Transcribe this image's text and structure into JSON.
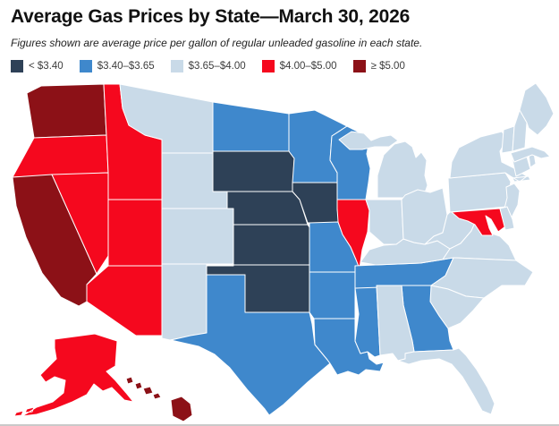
{
  "header": {
    "title": "Average Gas Prices by State—March 30, 2026",
    "subtitle": "Figures shown are average price per gallon of regular unleaded gasoline in each state."
  },
  "legend": {
    "items": [
      {
        "label": "< $3.40",
        "color": "#2e4157"
      },
      {
        "label": "$3.40–$3.65",
        "color": "#3f88cc"
      },
      {
        "label": "$3.65–$4.00",
        "color": "#c9dae8"
      },
      {
        "label": "$4.00–$5.00",
        "color": "#f5081e"
      },
      {
        "label": "≥ $5.00",
        "color": "#8c1117"
      }
    ]
  },
  "map": {
    "region": "United States",
    "states": [
      {
        "id": "WA",
        "name": "Washington",
        "bucket": 4
      },
      {
        "id": "OR",
        "name": "Oregon",
        "bucket": 3
      },
      {
        "id": "CA",
        "name": "California",
        "bucket": 4
      },
      {
        "id": "NV",
        "name": "Nevada",
        "bucket": 3
      },
      {
        "id": "ID",
        "name": "Idaho",
        "bucket": 3
      },
      {
        "id": "MT",
        "name": "Montana",
        "bucket": 2
      },
      {
        "id": "WY",
        "name": "Wyoming",
        "bucket": 2
      },
      {
        "id": "UT",
        "name": "Utah",
        "bucket": 3
      },
      {
        "id": "CO",
        "name": "Colorado",
        "bucket": 2
      },
      {
        "id": "NM",
        "name": "New Mexico",
        "bucket": 2
      },
      {
        "id": "AZ",
        "name": "Arizona",
        "bucket": 3
      },
      {
        "id": "ND",
        "name": "North Dakota",
        "bucket": 1
      },
      {
        "id": "SD",
        "name": "South Dakota",
        "bucket": 0
      },
      {
        "id": "NE",
        "name": "Nebraska",
        "bucket": 0
      },
      {
        "id": "KS",
        "name": "Kansas",
        "bucket": 0
      },
      {
        "id": "OK",
        "name": "Oklahoma",
        "bucket": 0
      },
      {
        "id": "TX",
        "name": "Texas",
        "bucket": 1
      },
      {
        "id": "MN",
        "name": "Minnesota",
        "bucket": 1
      },
      {
        "id": "IA",
        "name": "Iowa",
        "bucket": 0
      },
      {
        "id": "MO",
        "name": "Missouri",
        "bucket": 1
      },
      {
        "id": "AR",
        "name": "Arkansas",
        "bucket": 1
      },
      {
        "id": "LA",
        "name": "Louisiana",
        "bucket": 1
      },
      {
        "id": "WI",
        "name": "Wisconsin",
        "bucket": 1
      },
      {
        "id": "IL",
        "name": "Illinois",
        "bucket": 3
      },
      {
        "id": "MS",
        "name": "Mississippi",
        "bucket": 1
      },
      {
        "id": "TN",
        "name": "Tennessee",
        "bucket": 1
      },
      {
        "id": "KY",
        "name": "Kentucky",
        "bucket": 2
      },
      {
        "id": "IN",
        "name": "Indiana",
        "bucket": 2
      },
      {
        "id": "MI",
        "name": "Michigan",
        "bucket": 2
      },
      {
        "id": "OH",
        "name": "Ohio",
        "bucket": 2
      },
      {
        "id": "WV",
        "name": "West Virginia",
        "bucket": 2
      },
      {
        "id": "VA",
        "name": "Virginia",
        "bucket": 2
      },
      {
        "id": "NC",
        "name": "North Carolina",
        "bucket": 2
      },
      {
        "id": "SC",
        "name": "South Carolina",
        "bucket": 2
      },
      {
        "id": "GA",
        "name": "Georgia",
        "bucket": 1
      },
      {
        "id": "AL",
        "name": "Alabama",
        "bucket": 2
      },
      {
        "id": "FL",
        "name": "Florida",
        "bucket": 2
      },
      {
        "id": "PA",
        "name": "Pennsylvania",
        "bucket": 2
      },
      {
        "id": "NY",
        "name": "New York",
        "bucket": 2
      },
      {
        "id": "NJ",
        "name": "New Jersey",
        "bucket": 2
      },
      {
        "id": "MD",
        "name": "Maryland",
        "bucket": 3
      },
      {
        "id": "DE",
        "name": "Delaware",
        "bucket": 2
      },
      {
        "id": "CT",
        "name": "Connecticut",
        "bucket": 2
      },
      {
        "id": "RI",
        "name": "Rhode Island",
        "bucket": 2
      },
      {
        "id": "MA",
        "name": "Massachusetts",
        "bucket": 2
      },
      {
        "id": "VT",
        "name": "Vermont",
        "bucket": 2
      },
      {
        "id": "NH",
        "name": "New Hampshire",
        "bucket": 2
      },
      {
        "id": "ME",
        "name": "Maine",
        "bucket": 2
      },
      {
        "id": "AK",
        "name": "Alaska",
        "bucket": 3
      },
      {
        "id": "HI",
        "name": "Hawaii",
        "bucket": 4
      }
    ]
  },
  "chart_data": {
    "type": "heatmap",
    "subtype": "us-choropleth",
    "title": "Average Gas Prices by State—March 30, 2026",
    "value_unit": "USD per gallon of regular unleaded gasoline",
    "legend_position": "top",
    "buckets": [
      {
        "label": "< $3.40",
        "color": "#2e4157",
        "states": [
          "SD",
          "NE",
          "KS",
          "IA",
          "OK"
        ]
      },
      {
        "label": "$3.40–$3.65",
        "color": "#3f88cc",
        "states": [
          "ND",
          "MN",
          "WI",
          "MO",
          "AR",
          "LA",
          "MS",
          "TX",
          "TN",
          "GA"
        ]
      },
      {
        "label": "$3.65–$4.00",
        "color": "#c9dae8",
        "states": [
          "MT",
          "WY",
          "CO",
          "NM",
          "MI",
          "IN",
          "OH",
          "KY",
          "WV",
          "VA",
          "NC",
          "SC",
          "AL",
          "FL",
          "PA",
          "NY",
          "NJ",
          "DE",
          "CT",
          "RI",
          "MA",
          "VT",
          "NH",
          "ME"
        ]
      },
      {
        "label": "$4.00–$5.00",
        "color": "#f5081e",
        "states": [
          "OR",
          "ID",
          "NV",
          "UT",
          "AZ",
          "IL",
          "MD",
          "AK"
        ]
      },
      {
        "label": "≥ $5.00",
        "color": "#8c1117",
        "states": [
          "WA",
          "CA",
          "HI"
        ]
      }
    ]
  }
}
